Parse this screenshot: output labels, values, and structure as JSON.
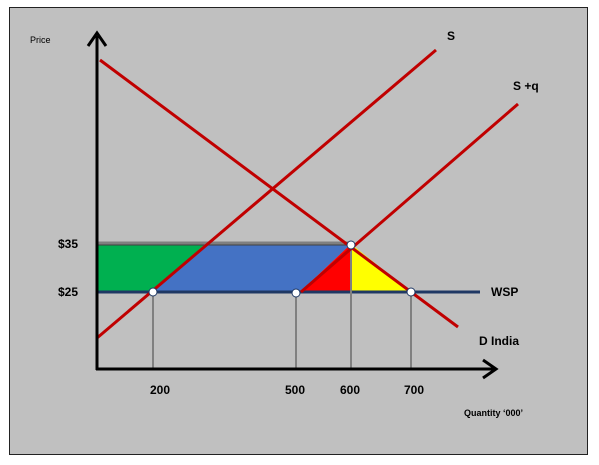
{
  "diagram": {
    "axis_labels": {
      "y": "Price",
      "x": "Quantity ‘000’"
    },
    "price_levels": [
      "$35",
      "$25"
    ],
    "quantity_ticks": [
      "200",
      "500",
      "600",
      "700"
    ],
    "curve_labels": {
      "supply": "S",
      "supply_plus_quota": "S +q",
      "world_price": "WSP",
      "demand": "D India"
    },
    "colors": {
      "background": "#c0c0c0",
      "curves": "#c00000",
      "world_price_line": "#1f3864",
      "axes": "#000000",
      "area_green": "#00b050",
      "area_blue": "#4472c4",
      "area_red": "#ff0000",
      "area_yellow": "#ffff00",
      "dropline": "#808080"
    }
  }
}
